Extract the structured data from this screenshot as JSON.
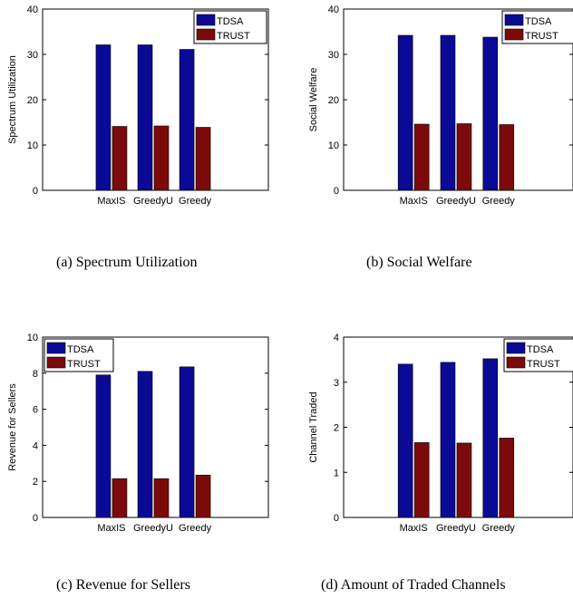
{
  "colors": {
    "tdsa": "#0a0a96",
    "trust": "#7d0a0a"
  },
  "chart_data": [
    {
      "type": "bar",
      "caption": "(a) Spectrum Utilization",
      "ylabel": "Spectrum Utilization",
      "xlabel": "",
      "categories": [
        "MaxIS",
        "GreedyU",
        "Greedy"
      ],
      "ylim": [
        0,
        40
      ],
      "yticks": [
        0,
        10,
        20,
        30,
        40
      ],
      "legend_position": "top-right",
      "series": [
        {
          "name": "TDSA",
          "values": [
            32.1,
            32.1,
            31.1
          ]
        },
        {
          "name": "TRUST",
          "values": [
            14.1,
            14.2,
            13.9
          ]
        }
      ]
    },
    {
      "type": "bar",
      "caption": "(b) Social Welfare",
      "ylabel": "Social Welfare",
      "xlabel": "",
      "categories": [
        "MaxIS",
        "GreedyU",
        "Greedy"
      ],
      "ylim": [
        0,
        40
      ],
      "yticks": [
        0,
        10,
        20,
        30,
        40
      ],
      "legend_position": "top-right",
      "series": [
        {
          "name": "TDSA",
          "values": [
            34.2,
            34.2,
            33.8
          ]
        },
        {
          "name": "TRUST",
          "values": [
            14.6,
            14.7,
            14.5
          ]
        }
      ]
    },
    {
      "type": "bar",
      "caption": "(c) Revenue for Sellers",
      "ylabel": "Revenue for Sellers",
      "xlabel": "",
      "categories": [
        "MaxIS",
        "GreedyU",
        "Greedy"
      ],
      "ylim": [
        0,
        10
      ],
      "yticks": [
        0,
        2,
        4,
        6,
        8,
        10
      ],
      "legend_position": "top-left",
      "series": [
        {
          "name": "TDSA",
          "values": [
            7.9,
            8.1,
            8.35
          ]
        },
        {
          "name": "TRUST",
          "values": [
            2.15,
            2.15,
            2.35
          ]
        }
      ]
    },
    {
      "type": "bar",
      "caption": "(d) Amount of Traded Channels",
      "ylabel": "Channel Traded",
      "xlabel": "",
      "categories": [
        "MaxIS",
        "GreedyU",
        "Greedy"
      ],
      "ylim": [
        0,
        4
      ],
      "yticks": [
        0,
        1,
        2,
        3,
        4
      ],
      "legend_position": "top-right",
      "series": [
        {
          "name": "TDSA",
          "values": [
            3.4,
            3.44,
            3.52
          ]
        },
        {
          "name": "TRUST",
          "values": [
            1.66,
            1.65,
            1.76
          ]
        }
      ]
    }
  ]
}
